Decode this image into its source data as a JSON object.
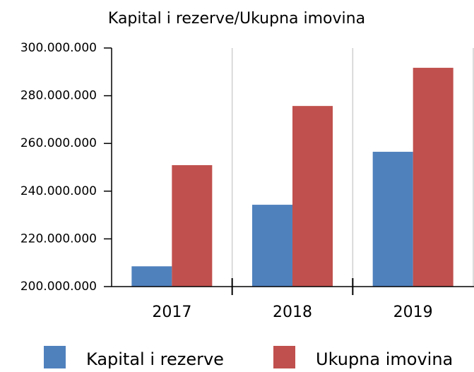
{
  "chart_data": {
    "type": "bar",
    "title": "Kapital i rezerve/Ukupna imovina",
    "categories": [
      "2017",
      "2018",
      "2019"
    ],
    "series": [
      {
        "name": "Kapital i rezerve",
        "color": "#4f81bd",
        "values": [
          208500000,
          234300000,
          256500000
        ]
      },
      {
        "name": "Ukupna imovina",
        "color": "#c0504d",
        "values": [
          250900000,
          275700000,
          291700000
        ]
      }
    ],
    "ylim": [
      200000000,
      300000000
    ],
    "yticks": [
      {
        "value": 200000000,
        "label": "200.000.000"
      },
      {
        "value": 220000000,
        "label": "220.000.000"
      },
      {
        "value": 240000000,
        "label": "240.000.000"
      },
      {
        "value": 260000000,
        "label": "260.000.000"
      },
      {
        "value": 280000000,
        "label": "280.000.000"
      },
      {
        "value": 300000000,
        "label": "300.000.000"
      }
    ],
    "grid": true,
    "legend": "bottom"
  }
}
